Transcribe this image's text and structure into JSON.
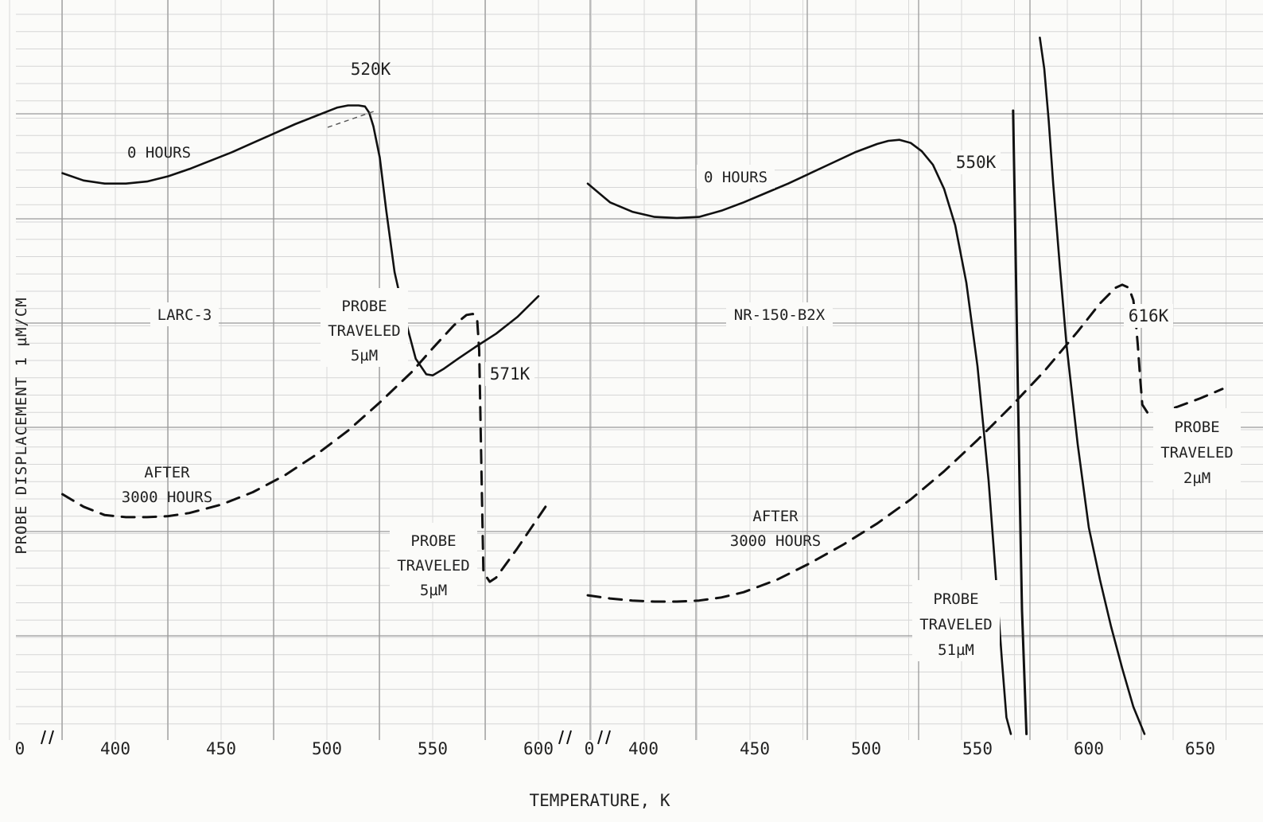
{
  "chart_data": [
    {
      "type": "line",
      "title": "",
      "xlabel": "TEMPERATURE, K",
      "ylabel": "PROBE  DISPLACEMENT  1 µM/CM",
      "x_origin_label": "0",
      "xticks": [
        400,
        450,
        500,
        550,
        600
      ],
      "specimen_label": "LARC-3",
      "series": [
        {
          "name": "0 HOURS",
          "style": "solid",
          "x": [
            375,
            385,
            395,
            405,
            415,
            425,
            435,
            445,
            455,
            465,
            475,
            485,
            495,
            505,
            510,
            515,
            518,
            520,
            522,
            525,
            528,
            532,
            537,
            542,
            547,
            550,
            555,
            562,
            570,
            580,
            590,
            600
          ],
          "y": [
            5.4,
            5.33,
            5.3,
            5.3,
            5.32,
            5.37,
            5.44,
            5.52,
            5.6,
            5.69,
            5.78,
            5.87,
            5.95,
            6.03,
            6.05,
            6.05,
            6.04,
            5.98,
            5.85,
            5.55,
            5.05,
            4.45,
            4.0,
            3.62,
            3.47,
            3.46,
            3.52,
            3.62,
            3.73,
            3.86,
            4.02,
            4.22
          ]
        },
        {
          "name": "AFTER 3000 HOURS",
          "style": "dashed",
          "x": [
            375,
            385,
            395,
            405,
            415,
            425,
            435,
            450,
            465,
            480,
            495,
            510,
            525,
            540,
            550,
            560,
            566,
            569,
            571,
            572,
            573,
            574,
            577,
            580,
            590,
            605
          ],
          "y": [
            2.32,
            2.2,
            2.12,
            2.1,
            2.1,
            2.11,
            2.14,
            2.22,
            2.34,
            2.5,
            2.7,
            2.93,
            3.2,
            3.49,
            3.72,
            3.94,
            4.04,
            4.05,
            4.0,
            3.7,
            2.6,
            1.57,
            1.48,
            1.52,
            1.8,
            2.25
          ]
        }
      ],
      "annotations": [
        {
          "text": "520K"
        },
        {
          "text": "0 HOURS"
        },
        {
          "text": "LARC-3"
        },
        {
          "lines": [
            "PROBE",
            "TRAVELED",
            "5µM"
          ]
        },
        {
          "text": "571K"
        },
        {
          "lines": [
            "AFTER",
            "3000 HOURS"
          ]
        },
        {
          "lines": [
            "PROBE",
            "TRAVELED",
            "5µM"
          ]
        }
      ]
    },
    {
      "type": "line",
      "title": "",
      "xlabel": "TEMPERATURE, K",
      "ylabel": "",
      "x_origin_label": "0",
      "xticks": [
        400,
        450,
        500,
        550,
        600,
        650
      ],
      "specimen_label": "NR-150-B2X",
      "series": [
        {
          "name": "0 HOURS",
          "style": "solid",
          "x": [
            375,
            385,
            395,
            405,
            415,
            425,
            435,
            445,
            455,
            465,
            475,
            485,
            495,
            505,
            510,
            515,
            520,
            525,
            530,
            535,
            540,
            545,
            550,
            555,
            558,
            561,
            563,
            565
          ],
          "y": [
            5.3,
            5.12,
            5.03,
            4.98,
            4.97,
            4.98,
            5.04,
            5.12,
            5.21,
            5.3,
            5.4,
            5.5,
            5.6,
            5.68,
            5.71,
            5.72,
            5.69,
            5.61,
            5.48,
            5.25,
            4.9,
            4.35,
            3.55,
            2.45,
            1.6,
            0.72,
            0.18,
            0.02
          ],
          "extra_trace_x": [
            566,
            567,
            568,
            569,
            570,
            572
          ],
          "extra_trace_y": [
            6.0,
            4.8,
            3.5,
            2.3,
            1.2,
            0.02
          ]
        },
        {
          "name": "AFTER 3000 HOURS",
          "style": "dashed",
          "x": [
            375,
            385,
            395,
            405,
            415,
            425,
            435,
            445,
            460,
            475,
            490,
            505,
            520,
            535,
            550,
            565,
            580,
            595,
            605,
            612,
            615,
            618,
            620,
            621,
            622,
            623,
            624,
            627,
            633,
            640,
            650,
            660
          ],
          "y": [
            1.35,
            1.32,
            1.3,
            1.29,
            1.29,
            1.3,
            1.33,
            1.38,
            1.5,
            1.66,
            1.84,
            2.04,
            2.27,
            2.54,
            2.84,
            3.16,
            3.5,
            3.88,
            4.15,
            4.3,
            4.33,
            4.3,
            4.18,
            4.0,
            3.75,
            3.45,
            3.18,
            3.08,
            3.11,
            3.16,
            3.24,
            3.33
          ]
        },
        {
          "name": "",
          "style": "solid",
          "x": [
            578,
            580,
            582,
            584,
            587,
            590,
            595,
            600,
            605,
            610,
            615,
            620,
            625
          ],
          "y": [
            6.7,
            6.4,
            5.9,
            5.3,
            4.5,
            3.75,
            2.8,
            2.0,
            1.5,
            1.05,
            0.65,
            0.28,
            0.02
          ]
        }
      ],
      "annotations": [
        {
          "text": "0 HOURS"
        },
        {
          "text": "550K"
        },
        {
          "text": "NR-150-B2X"
        },
        {
          "text": "616K"
        },
        {
          "lines": [
            "PROBE",
            "TRAVELED",
            "2µM"
          ]
        },
        {
          "lines": [
            "AFTER",
            "3000 HOURS"
          ]
        },
        {
          "lines": [
            "PROBE",
            "TRAVELED",
            "51µM"
          ]
        }
      ]
    }
  ]
}
